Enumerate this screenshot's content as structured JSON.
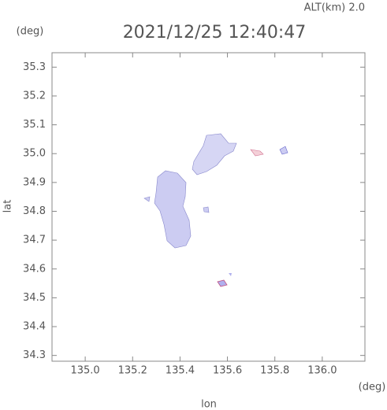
{
  "chart_data": {
    "type": "map",
    "title": "2021/12/25 12:40:47",
    "altitude_label": "ALT(km) 2.0",
    "x_label": "lon",
    "y_label": "lat",
    "x_unit": "(deg)",
    "y_unit": "(deg)",
    "xlim": [
      134.86,
      136.18
    ],
    "ylim": [
      34.28,
      35.35
    ],
    "xticks": [
      {
        "value": 135.0,
        "label": "135.0"
      },
      135.2,
      135.4,
      135.6,
      135.8,
      {
        "value": 136.0,
        "label": "136.0"
      }
    ],
    "yticks": [
      35.3,
      35.2,
      35.1,
      {
        "value": 35.0,
        "label": "35.0"
      },
      34.9,
      34.8,
      34.7,
      34.6,
      34.5,
      34.4,
      34.3
    ]
  }
}
